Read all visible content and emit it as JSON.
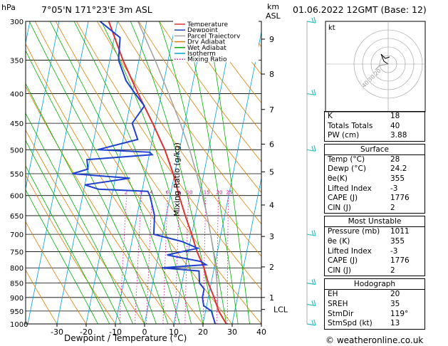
{
  "header": {
    "hpa_label": "hPa",
    "location": "7°05'N 171°23'E 3m ASL",
    "km_label": "km",
    "asl_label": "ASL",
    "datetime": "01.06.2022 12GMT (Base: 12)"
  },
  "footer": {
    "credit": "© weatheronline.co.uk"
  },
  "hodograph": {
    "label": "kt",
    "ring_labels": [
      "20",
      "30",
      "40"
    ]
  },
  "indices": {
    "k_label": "K",
    "k": "18",
    "tt_label": "Totals Totals",
    "tt": "40",
    "pw_label": "PW (cm)",
    "pw": "3.88"
  },
  "surface": {
    "title": "Surface",
    "temp_label": "Temp (°C)",
    "temp": "28",
    "dewp_label": "Dewp (°C)",
    "dewp": "24.2",
    "theta_label": "θe(K)",
    "theta": "355",
    "li_label": "Lifted Index",
    "li": "-3",
    "cape_label": "CAPE (J)",
    "cape": "1776",
    "cin_label": "CIN (J)",
    "cin": "2"
  },
  "most_unstable": {
    "title": "Most Unstable",
    "pres_label": "Pressure (mb)",
    "pres": "1011",
    "theta_label": "θe (K)",
    "theta": "355",
    "li_label": "Lifted Index",
    "li": "-3",
    "cape_label": "CAPE (J)",
    "cape": "1776",
    "cin_label": "CIN (J)",
    "cin": "2"
  },
  "hodo_table": {
    "title": "Hodograph",
    "eh_label": "EH",
    "eh": "20",
    "srh_label": "SREH",
    "srh": "35",
    "dir_label": "StmDir",
    "dir": "119°",
    "spd_label": "StmSpd (kt)",
    "spd": "13"
  },
  "chart_data": {
    "type": "line",
    "xlabel": "Dewpoint / Temperature (°C)",
    "ylabel_right": "Mixing Ratio (g/kg)",
    "x_ticks": [
      -30,
      -20,
      -10,
      0,
      10,
      20,
      30,
      40
    ],
    "pressure_levels": [
      300,
      350,
      400,
      450,
      500,
      550,
      600,
      650,
      700,
      750,
      800,
      850,
      900,
      950,
      1000
    ],
    "km_ticks": [
      {
        "km": "1",
        "p": 900
      },
      {
        "km": "2",
        "p": 797
      },
      {
        "km": "3",
        "p": 706
      },
      {
        "km": "4",
        "p": 623
      },
      {
        "km": "5",
        "p": 546
      },
      {
        "km": "6",
        "p": 489
      },
      {
        "km": "7",
        "p": 426
      },
      {
        "km": "8",
        "p": 370
      },
      {
        "km": "9",
        "p": 322
      }
    ],
    "lcl_label": "LCL",
    "lcl_p": 944,
    "mixing_ratio_labels": [
      "2",
      "3",
      "4",
      "6",
      "8",
      "10",
      "15",
      "20",
      "25"
    ],
    "legend": [
      "Temperature",
      "Dewpoint",
      "Parcel Trajectory",
      "Dry Adiabat",
      "Wet Adiabat",
      "Isotherm",
      "Mixing Ratio"
    ],
    "colors": {
      "temperature": "#e03030",
      "dewpoint": "#2040d0",
      "parcel": "#a0a0a0",
      "dry_adiabat": "#e08000",
      "wet_adiabat": "#00b000",
      "isotherm": "#00a0e0",
      "mixing_ratio": "#e000a0",
      "wind": "#30c0c0"
    },
    "series": [
      {
        "name": "Temperature",
        "points": [
          [
            1000,
            28
          ],
          [
            950,
            24.5
          ],
          [
            900,
            22
          ],
          [
            850,
            19
          ],
          [
            800,
            16.5
          ],
          [
            750,
            13
          ],
          [
            700,
            10
          ],
          [
            650,
            6.5
          ],
          [
            600,
            3
          ],
          [
            550,
            -0.5
          ],
          [
            500,
            -5
          ],
          [
            450,
            -11
          ],
          [
            400,
            -18
          ],
          [
            350,
            -25.5
          ],
          [
            300,
            -33
          ]
        ]
      },
      {
        "name": "Dewpoint",
        "points": [
          [
            1000,
            24.2
          ],
          [
            950,
            22
          ],
          [
            930,
            19
          ],
          [
            900,
            18
          ],
          [
            870,
            18
          ],
          [
            850,
            16
          ],
          [
            810,
            15
          ],
          [
            800,
            2
          ],
          [
            790,
            17
          ],
          [
            780,
            15
          ],
          [
            760,
            3
          ],
          [
            740,
            13
          ],
          [
            720,
            7
          ],
          [
            700,
            -3
          ],
          [
            650,
            -4
          ],
          [
            600,
            -7
          ],
          [
            590,
            -8
          ],
          [
            585,
            -25
          ],
          [
            575,
            -30
          ],
          [
            560,
            -15
          ],
          [
            550,
            -35
          ],
          [
            540,
            -30
          ],
          [
            520,
            -31
          ],
          [
            510,
            -9
          ],
          [
            505,
            -10
          ],
          [
            500,
            -28
          ],
          [
            480,
            -15
          ],
          [
            450,
            -18
          ],
          [
            420,
            -15
          ],
          [
            400,
            -19
          ],
          [
            380,
            -23
          ],
          [
            350,
            -27
          ],
          [
            320,
            -28
          ],
          [
            300,
            -36
          ]
        ]
      },
      {
        "name": "Parcel Trajectory",
        "points": [
          [
            1000,
            28
          ],
          [
            944,
            24
          ],
          [
            900,
            23.2
          ],
          [
            850,
            22
          ],
          [
            800,
            20.5
          ],
          [
            750,
            18.6
          ],
          [
            700,
            16.5
          ],
          [
            650,
            14
          ],
          [
            600,
            11
          ],
          [
            550,
            7.5
          ],
          [
            500,
            3.5
          ],
          [
            450,
            -1.5
          ],
          [
            400,
            -7.5
          ],
          [
            350,
            -14.5
          ],
          [
            300,
            -23
          ]
        ]
      }
    ],
    "winds": [
      [
        300,
        115,
        25
      ],
      [
        400,
        90,
        12
      ],
      [
        500,
        100,
        15
      ],
      [
        700,
        80,
        20
      ],
      [
        850,
        70,
        20
      ],
      [
        925,
        75,
        20
      ],
      [
        1000,
        90,
        15
      ]
    ]
  }
}
